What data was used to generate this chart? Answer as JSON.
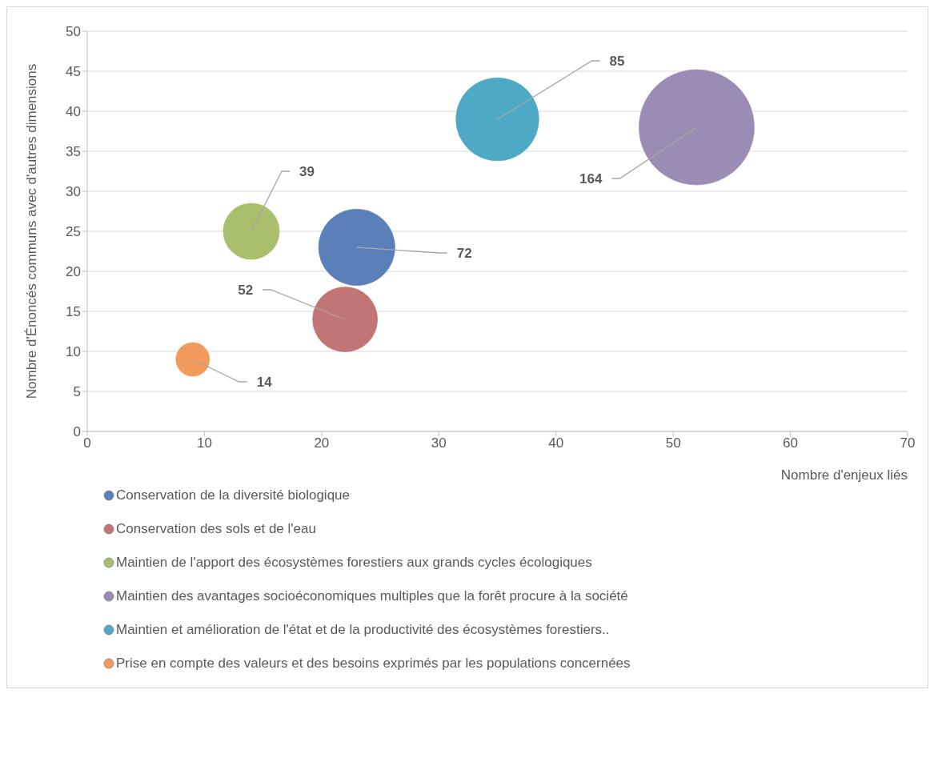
{
  "chart_data": {
    "type": "bubble",
    "xlabel": "Nombre d'enjeux liés",
    "ylabel": "Nombre d'Énoncés communs avec d'autres dimensions",
    "xlim": [
      0,
      70
    ],
    "xticks": [
      0,
      10,
      20,
      30,
      40,
      50,
      60,
      70
    ],
    "ylim": [
      0,
      50
    ],
    "yticks": [
      0,
      5,
      10,
      15,
      20,
      25,
      30,
      35,
      40,
      45,
      50
    ],
    "grid": "y",
    "legend": "bottom",
    "series": [
      {
        "name": "Conservation de la diversité biologique",
        "color": "#5b7fb8",
        "x": [
          23
        ],
        "values": [
          23
        ],
        "sizes": [
          72
        ],
        "value_labels": [
          "72"
        ]
      },
      {
        "name": "Conservation des sols et de l'eau",
        "color": "#c27576",
        "x": [
          22
        ],
        "values": [
          14
        ],
        "sizes": [
          52
        ],
        "value_labels": [
          "52"
        ]
      },
      {
        "name": "Maintien de l'apport des écosystèmes forestiers aux grands cycles écologiques",
        "color": "#a9bf6c",
        "x": [
          14
        ],
        "values": [
          25
        ],
        "sizes": [
          39
        ],
        "value_labels": [
          "39"
        ]
      },
      {
        "name": "Maintien des avantages socioéconomiques multiples que la forêt procure à la société",
        "color": "#9a8cb5",
        "x": [
          52
        ],
        "values": [
          38
        ],
        "sizes": [
          164
        ],
        "value_labels": [
          "164"
        ]
      },
      {
        "name": "Maintien et amélioration de l'état et de la productivité des écosystèmes forestiers..",
        "color": "#4eaac4",
        "x": [
          35
        ],
        "values": [
          39
        ],
        "sizes": [
          85
        ],
        "value_labels": [
          "85"
        ]
      },
      {
        "name": "Prise en compte des valeurs et des besoins exprimés par les populations concernées",
        "color": "#f29a5c",
        "x": [
          9
        ],
        "values": [
          9
        ],
        "sizes": [
          14
        ],
        "value_labels": [
          "14"
        ]
      }
    ]
  }
}
